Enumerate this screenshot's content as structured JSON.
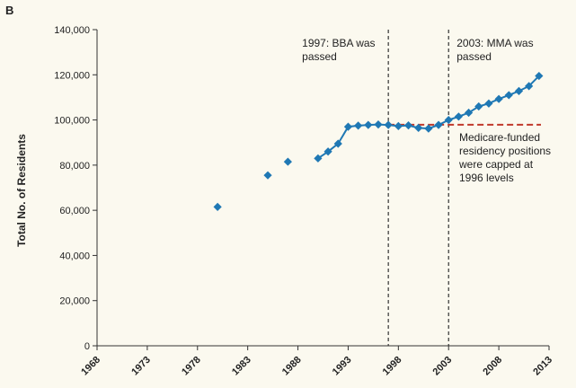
{
  "panel_label": "B",
  "colors": {
    "series": "#1f78b4",
    "cap": "#c0392b",
    "marker_line": "#333333",
    "background": "#fbf9ef"
  },
  "chart_data": {
    "type": "line",
    "title": "",
    "xlabel": "",
    "ylabel": "Total No. of Residents",
    "xlim": [
      1968,
      2013
    ],
    "ylim": [
      0,
      140000
    ],
    "x_ticks": [
      "1968",
      "1973",
      "1978",
      "1983",
      "1988",
      "1993",
      "1998",
      "2003",
      "2008",
      "2013"
    ],
    "y_ticks": [
      "0",
      "20,000",
      "40,000",
      "60,000",
      "80,000",
      "100,000",
      "120,000",
      "140,000"
    ],
    "grid": false,
    "series": [
      {
        "x": [
          1980,
          1985,
          1987,
          1990,
          1991,
          1992,
          1993,
          1994,
          1995,
          1996,
          1997,
          1998,
          1999,
          2000,
          2001,
          2002,
          2003,
          2004,
          2005,
          2006,
          2007,
          2008,
          2009,
          2010,
          2011,
          2012
        ],
        "y": [
          61500,
          75500,
          81500,
          83000,
          86000,
          89500,
          97000,
          97500,
          97800,
          98000,
          97800,
          97300,
          97600,
          96500,
          96200,
          97800,
          100000,
          101500,
          103200,
          106000,
          107300,
          109300,
          111000,
          112800,
          115000,
          119500
        ]
      }
    ],
    "reference_line": {
      "y": 97900,
      "x_start": 1997,
      "x_end": 2013,
      "style": "dashed",
      "label": "Medicare-funded residency positions were capped at 1996 levels",
      "label_lines": [
        "Medicare-funded",
        "residency positions",
        "were capped at",
        "1996 levels"
      ]
    },
    "vertical_markers": [
      {
        "x": 1997,
        "label": "1997: BBA was passed",
        "label_lines": [
          "1997: BBA was",
          "passed"
        ]
      },
      {
        "x": 2003,
        "label": "2003: MMA was passed",
        "label_lines": [
          "2003: MMA was",
          "passed"
        ]
      }
    ]
  }
}
